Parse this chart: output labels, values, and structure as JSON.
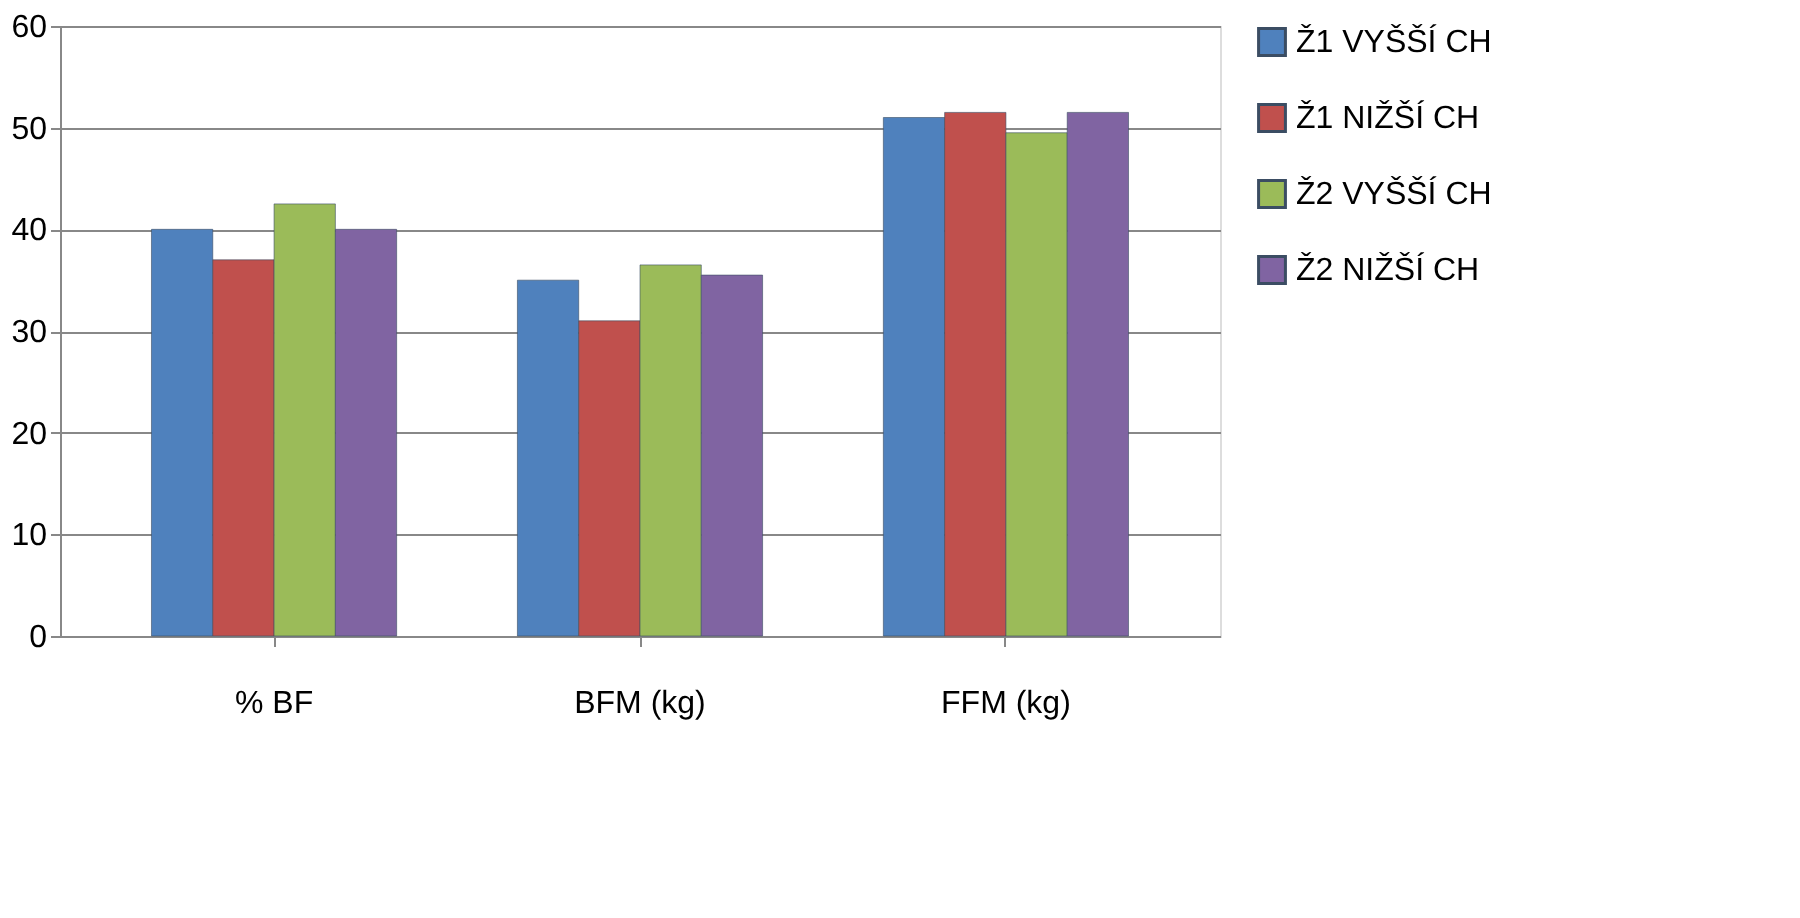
{
  "chart_data": {
    "type": "bar",
    "categories": [
      "% BF",
      "BFM (kg)",
      "FFM (kg)"
    ],
    "series": [
      {
        "name": "Ž1 VYŠŠÍ CH",
        "color": "#4f81bd",
        "values": [
          40,
          35,
          51
        ]
      },
      {
        "name": "Ž1 NIŽŠÍ CH",
        "color": "#c0504d",
        "values": [
          37,
          31,
          51.5
        ]
      },
      {
        "name": "Ž2 VYŠŠÍ CH",
        "color": "#9bbb59",
        "values": [
          42.5,
          36.5,
          49.5
        ]
      },
      {
        "name": "Ž2 NIŽŠÍ CH",
        "color": "#8064a2",
        "values": [
          40,
          35.5,
          51.5
        ]
      }
    ],
    "ylim": [
      0,
      60
    ],
    "yticks": [
      0,
      10,
      20,
      30,
      40,
      50,
      60
    ],
    "grid": "y",
    "legend": "right"
  }
}
